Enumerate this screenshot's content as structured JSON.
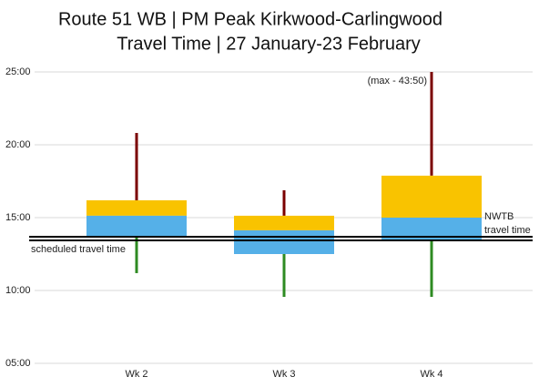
{
  "chart_data": {
    "type": "box",
    "title": [
      "Route 51 WB | PM Peak Kirkwood-Carlingwood",
      "Travel Time | 27 January-23 February"
    ],
    "categories": [
      "Wk 2",
      "Wk 3",
      "Wk 4"
    ],
    "max": [
      20.81,
      16.88,
      43.83
    ],
    "q3": [
      16.19,
      15.13,
      17.88
    ],
    "median": [
      15.13,
      14.13,
      15.0
    ],
    "q1": [
      13.69,
      12.5,
      13.38
    ],
    "min": [
      11.19,
      9.56,
      9.56
    ],
    "upper_color": "#f9c300",
    "lower_color": "#55b0e8",
    "upper_whisker_color": "#7b0000",
    "lower_whisker_color": "#2e8b22",
    "ylim": [
      5,
      25
    ],
    "yticks": [
      {
        "value": 5,
        "label": "05:00"
      },
      {
        "value": 10,
        "label": "10:00"
      },
      {
        "value": 15,
        "label": "15:00"
      },
      {
        "value": 20,
        "label": "20:00"
      },
      {
        "value": 25,
        "label": "25:00"
      }
    ],
    "grid": true,
    "reference_lines": [
      {
        "label": [
          "NWTB",
          "travel time"
        ],
        "value": 13.69,
        "side": "right"
      },
      {
        "label": [
          "scheduled travel time"
        ],
        "value": 13.44,
        "side": "left"
      }
    ],
    "annotation": {
      "text": "(max - 43:50)",
      "category": 2
    }
  }
}
